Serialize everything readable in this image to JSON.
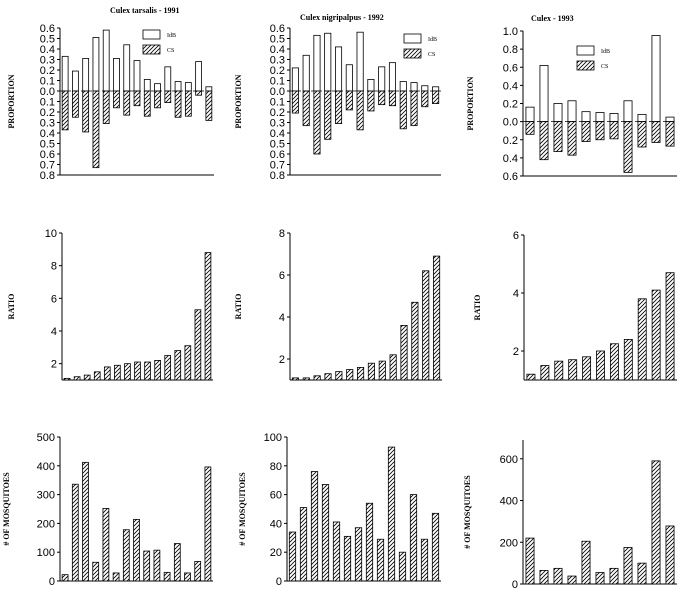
{
  "chart_data": [
    {
      "id": "p1",
      "type": "bar",
      "subtype": "diverging",
      "title": "Culex tarsalis - 1991",
      "ylabel": "PROPORTION",
      "ylim": [
        -0.8,
        0.6
      ],
      "yticks": [
        0.6,
        0.5,
        0.4,
        0.3,
        0.2,
        0.1,
        0.0,
        -0.1,
        -0.2,
        -0.3,
        -0.4,
        -0.5,
        -0.6,
        -0.7,
        -0.8
      ],
      "ytick_labels": [
        "0.6",
        "0.5",
        "0.4",
        "0.3",
        "0.2",
        "0.1",
        "0.0",
        "0.1",
        "0.2",
        "0.3",
        "0.4",
        "0.5",
        "0.6",
        "0.7",
        "0.8"
      ],
      "series": [
        {
          "name": "IdB",
          "fill": "open",
          "values": [
            0.33,
            0.19,
            0.31,
            0.51,
            0.58,
            0.31,
            0.44,
            0.29,
            0.11,
            0.07,
            0.23,
            0.09,
            0.08,
            0.28,
            0.04
          ]
        },
        {
          "name": "CS",
          "fill": "hatched",
          "values": [
            -0.37,
            -0.25,
            -0.39,
            -0.73,
            -0.31,
            -0.16,
            -0.23,
            -0.14,
            -0.24,
            -0.16,
            -0.11,
            -0.25,
            -0.24,
            -0.04,
            -0.28
          ]
        }
      ]
    },
    {
      "id": "p2",
      "type": "bar",
      "subtype": "diverging",
      "title": "Culex nigripalpus - 1992",
      "ylabel": "PROPORTION",
      "ylim": [
        -0.8,
        0.6
      ],
      "yticks": [
        0.6,
        0.5,
        0.4,
        0.3,
        0.2,
        0.1,
        0.0,
        -0.1,
        -0.2,
        -0.3,
        -0.4,
        -0.5,
        -0.6,
        -0.7,
        -0.8
      ],
      "ytick_labels": [
        "0.6",
        "0.5",
        "0.4",
        "0.3",
        "0.2",
        "0.1",
        "0.0",
        "0.1",
        "0.2",
        "0.3",
        "0.4",
        "0.5",
        "0.6",
        "0.7",
        "0.8"
      ],
      "series": [
        {
          "name": "IdB",
          "fill": "open",
          "values": [
            0.22,
            0.34,
            0.53,
            0.55,
            0.42,
            0.25,
            0.56,
            0.11,
            0.23,
            0.27,
            0.09,
            0.08,
            0.05,
            0.04
          ]
        },
        {
          "name": "CS",
          "fill": "hatched",
          "values": [
            -0.21,
            -0.33,
            -0.6,
            -0.46,
            -0.31,
            -0.18,
            -0.37,
            -0.19,
            -0.13,
            -0.14,
            -0.36,
            -0.33,
            -0.15,
            -0.12
          ]
        }
      ]
    },
    {
      "id": "p3",
      "type": "bar",
      "subtype": "diverging",
      "title": "Culex - 1993",
      "ylabel": "PROPORTION",
      "ylim": [
        -0.6,
        1.0
      ],
      "yticks": [
        1.0,
        0.8,
        0.6,
        0.4,
        0.2,
        0.0,
        -0.2,
        -0.4,
        -0.6
      ],
      "ytick_labels": [
        "1.0",
        "0.8",
        "0.6",
        "0.4",
        "0.2",
        "0.0",
        "0.2",
        "0.4",
        "0.6"
      ],
      "series": [
        {
          "name": "IdB",
          "fill": "open",
          "values": [
            0.16,
            0.62,
            0.2,
            0.23,
            0.11,
            0.1,
            0.09,
            0.23,
            0.08,
            0.95,
            0.05
          ]
        },
        {
          "name": "CS",
          "fill": "hatched",
          "values": [
            -0.14,
            -0.42,
            -0.33,
            -0.37,
            -0.22,
            -0.2,
            -0.19,
            -0.56,
            -0.28,
            -0.23,
            -0.27
          ]
        }
      ]
    },
    {
      "id": "p4",
      "type": "bar",
      "ylabel": "RATIO",
      "ylim": [
        1,
        10
      ],
      "yticks": [
        2,
        4,
        6,
        8,
        10
      ],
      "ytick_labels": [
        "2",
        "4",
        "6",
        "8",
        "10"
      ],
      "series": [
        {
          "fill": "hatched",
          "values": [
            1.1,
            1.2,
            1.3,
            1.5,
            1.8,
            1.9,
            2.0,
            2.1,
            2.1,
            2.2,
            2.5,
            2.8,
            3.1,
            5.3,
            8.8
          ]
        }
      ]
    },
    {
      "id": "p5",
      "type": "bar",
      "ylabel": "RATIO",
      "ylim": [
        1,
        8
      ],
      "yticks": [
        2,
        4,
        6,
        8
      ],
      "ytick_labels": [
        "2",
        "4",
        "6",
        "8"
      ],
      "series": [
        {
          "fill": "hatched",
          "values": [
            1.1,
            1.1,
            1.2,
            1.3,
            1.4,
            1.5,
            1.6,
            1.8,
            1.9,
            2.2,
            3.6,
            4.7,
            6.2,
            6.9
          ]
        }
      ]
    },
    {
      "id": "p6",
      "type": "bar",
      "ylabel": "RATIO",
      "ylim": [
        1,
        6
      ],
      "yticks": [
        2,
        4,
        6
      ],
      "ytick_labels": [
        "2",
        "4",
        "6"
      ],
      "series": [
        {
          "fill": "hatched",
          "values": [
            1.2,
            1.5,
            1.65,
            1.7,
            1.8,
            2.0,
            2.25,
            2.4,
            3.8,
            4.1,
            4.7
          ]
        }
      ]
    },
    {
      "id": "p7",
      "type": "bar",
      "ylabel": "# OF MOSQUITOES",
      "ylim": [
        0,
        500
      ],
      "yticks": [
        0,
        100,
        200,
        300,
        400,
        500
      ],
      "ytick_labels": [
        "0",
        "100",
        "200",
        "300",
        "400",
        "500"
      ],
      "series": [
        {
          "fill": "hatched",
          "values": [
            22,
            336,
            412,
            65,
            252,
            28,
            178,
            214,
            104,
            107,
            30,
            130,
            28,
            68,
            396
          ]
        }
      ]
    },
    {
      "id": "p8",
      "type": "bar",
      "ylabel": "# OF MOSQUITOES",
      "ylim": [
        0,
        100
      ],
      "yticks": [
        0,
        20,
        40,
        60,
        80,
        100
      ],
      "ytick_labels": [
        "0",
        "20",
        "40",
        "60",
        "80",
        "100"
      ],
      "series": [
        {
          "fill": "hatched",
          "values": [
            34,
            51,
            76,
            67,
            41,
            31,
            37,
            54,
            29,
            93,
            20,
            60,
            29,
            47
          ]
        }
      ]
    },
    {
      "id": "p9",
      "type": "bar",
      "ylabel": "# OF MOSQUITOES",
      "ylim": [
        0,
        690
      ],
      "yticks": [
        0,
        200,
        400,
        600
      ],
      "ytick_labels": [
        "0",
        "200",
        "400",
        "600"
      ],
      "series": [
        {
          "fill": "hatched",
          "values": [
            220,
            65,
            75,
            38,
            205,
            55,
            75,
            175,
            100,
            590,
            278
          ]
        }
      ]
    }
  ]
}
